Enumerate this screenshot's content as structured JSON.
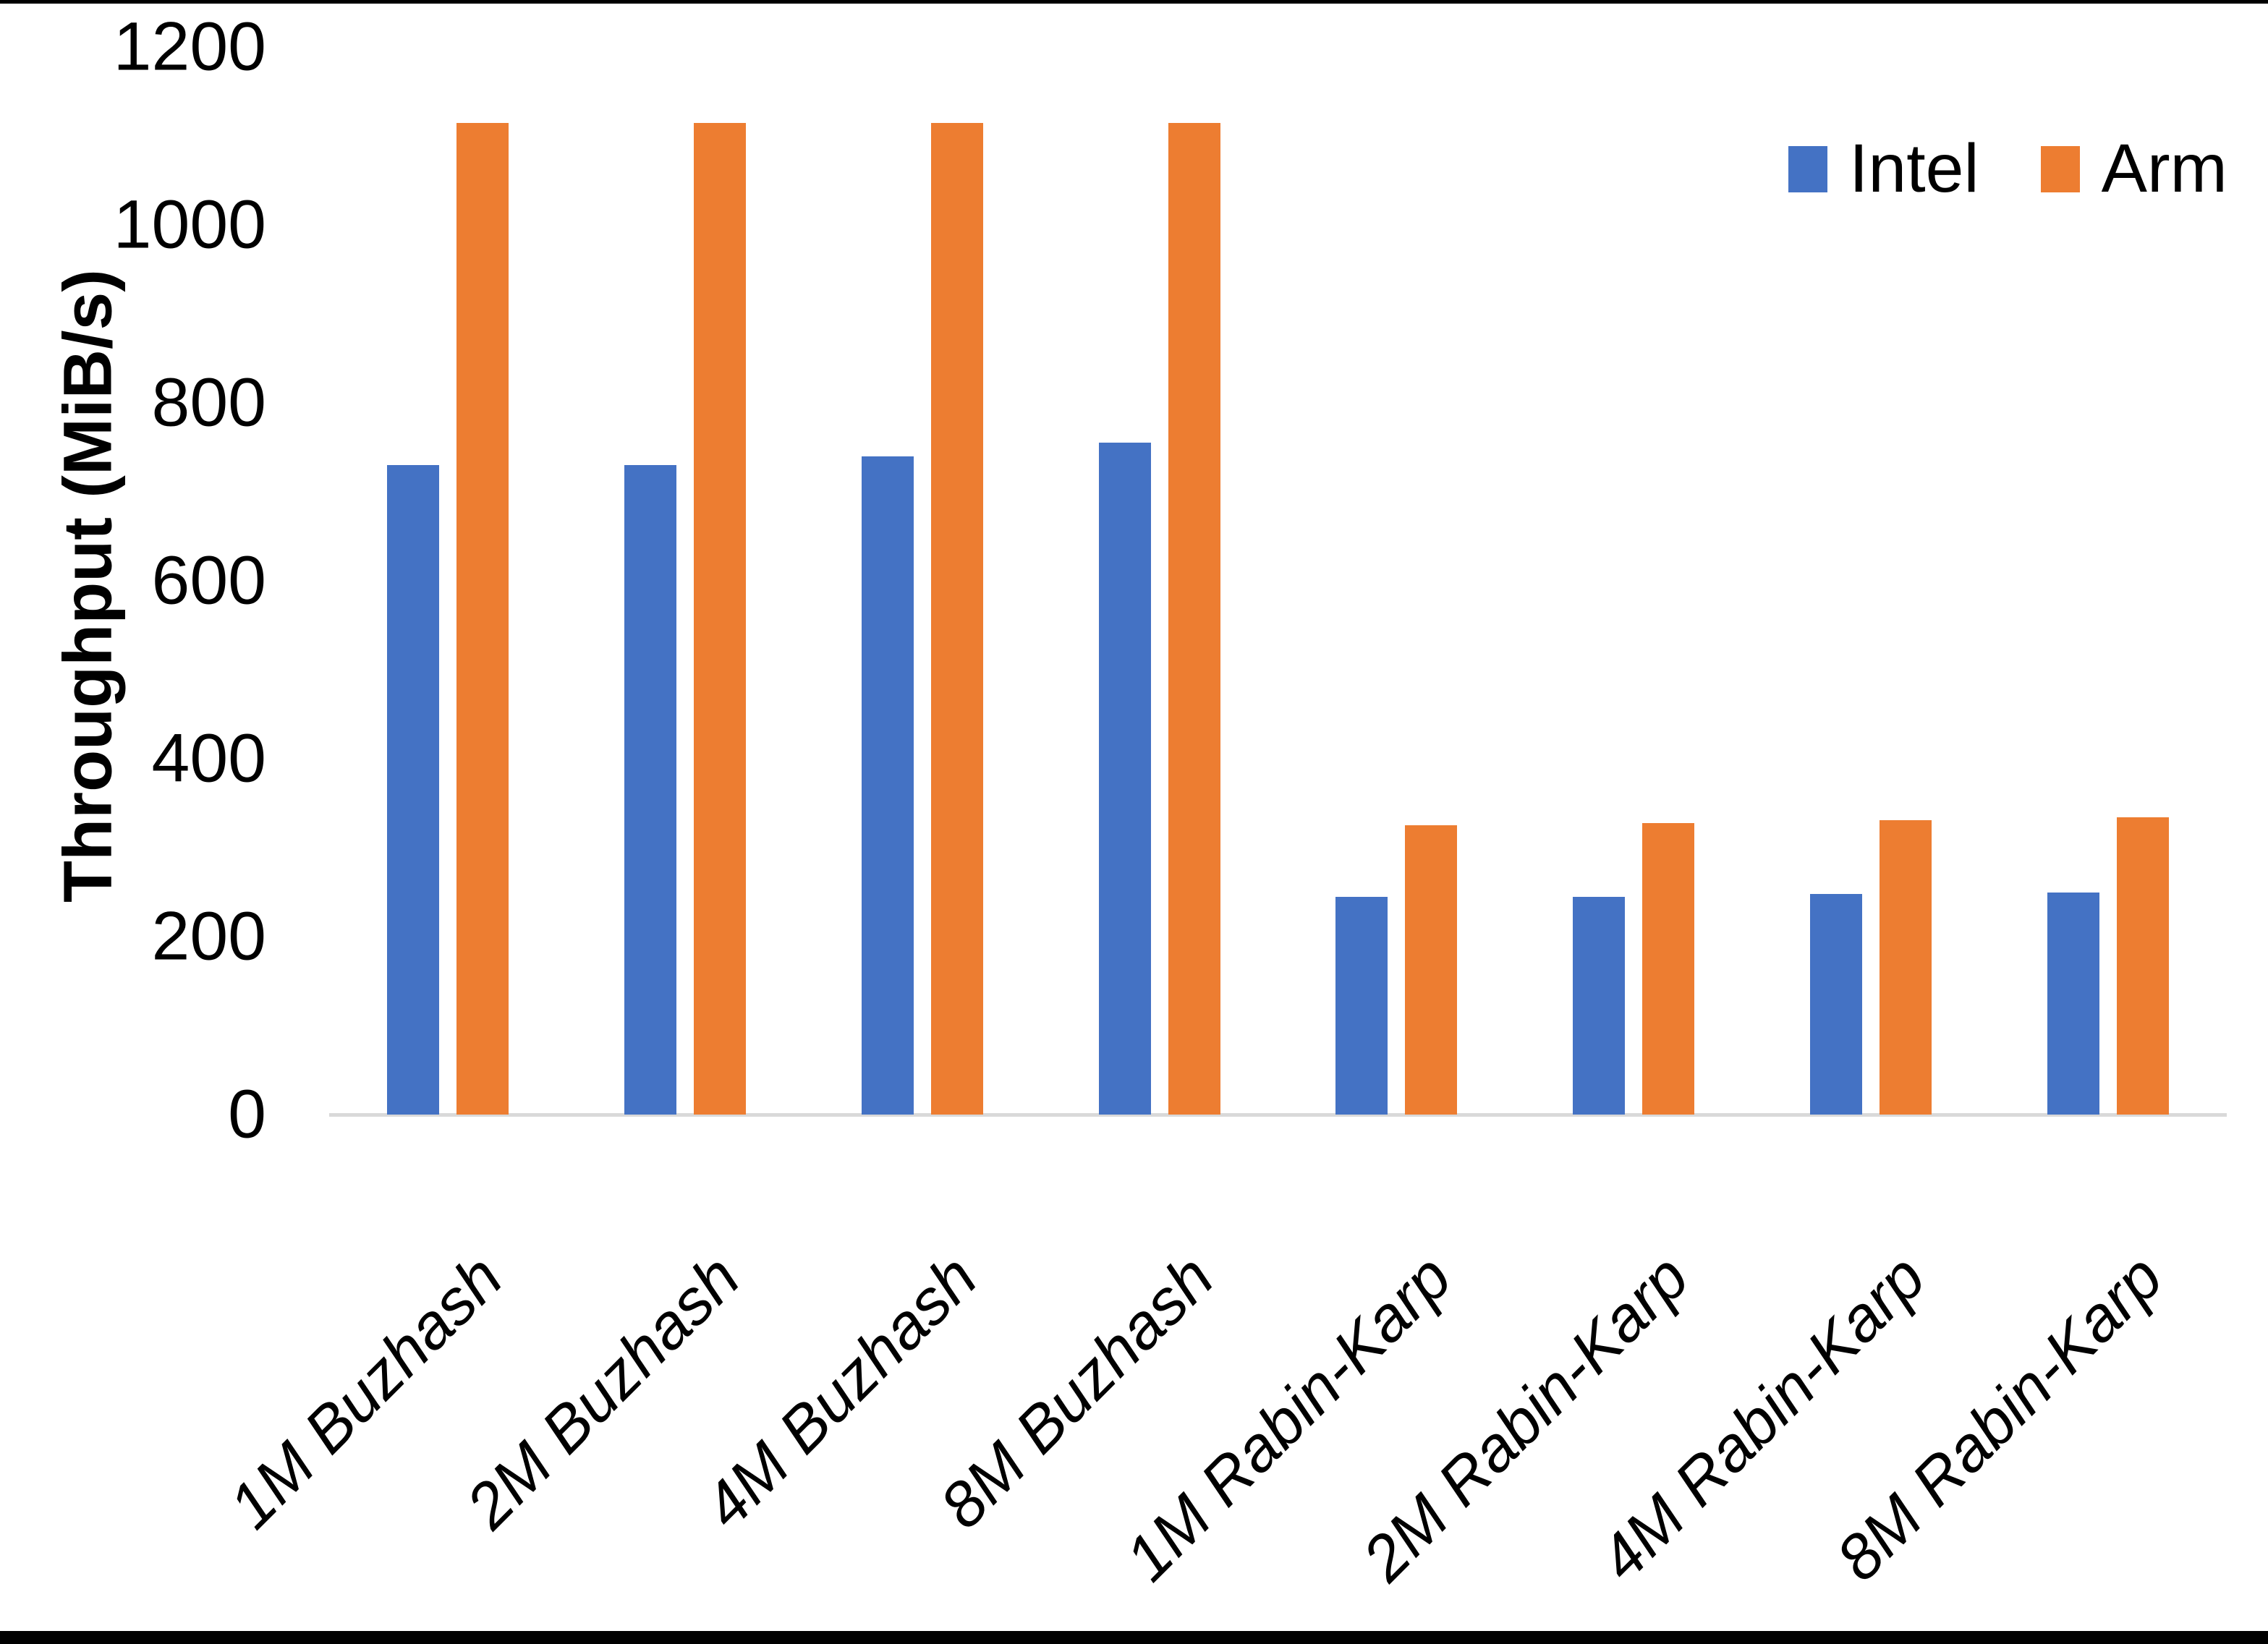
{
  "chart_data": {
    "type": "bar",
    "title": "",
    "ylabel": "Throughput (MiB/s)",
    "xlabel": "",
    "categories": [
      "1M Buzhash",
      "2M Buzhash",
      "4M Buzhash",
      "8M Buzhash",
      "1M Rabin-Karp",
      "2M Rabin-Karp",
      "4M Rabin-Karp",
      "8M Rabin-Karp"
    ],
    "series": [
      {
        "name": "Intel",
        "color": "#4472C4",
        "values": [
          730,
          730,
          740,
          755,
          245,
          245,
          248,
          250
        ]
      },
      {
        "name": "Arm",
        "color": "#ED7D31",
        "values": [
          1115,
          1115,
          1115,
          1115,
          325,
          328,
          331,
          334
        ]
      }
    ],
    "ylim": [
      0,
      1200
    ],
    "yticks": [
      0,
      200,
      400,
      600,
      800,
      1000,
      1200
    ],
    "grid": false,
    "legend_position": "top-right",
    "x_tick_rotation_deg": 45
  },
  "colors": {
    "background": "#FFFFFF",
    "axis_line": "#D9D9D9",
    "text": "#000000",
    "border_bars": "#000000"
  }
}
